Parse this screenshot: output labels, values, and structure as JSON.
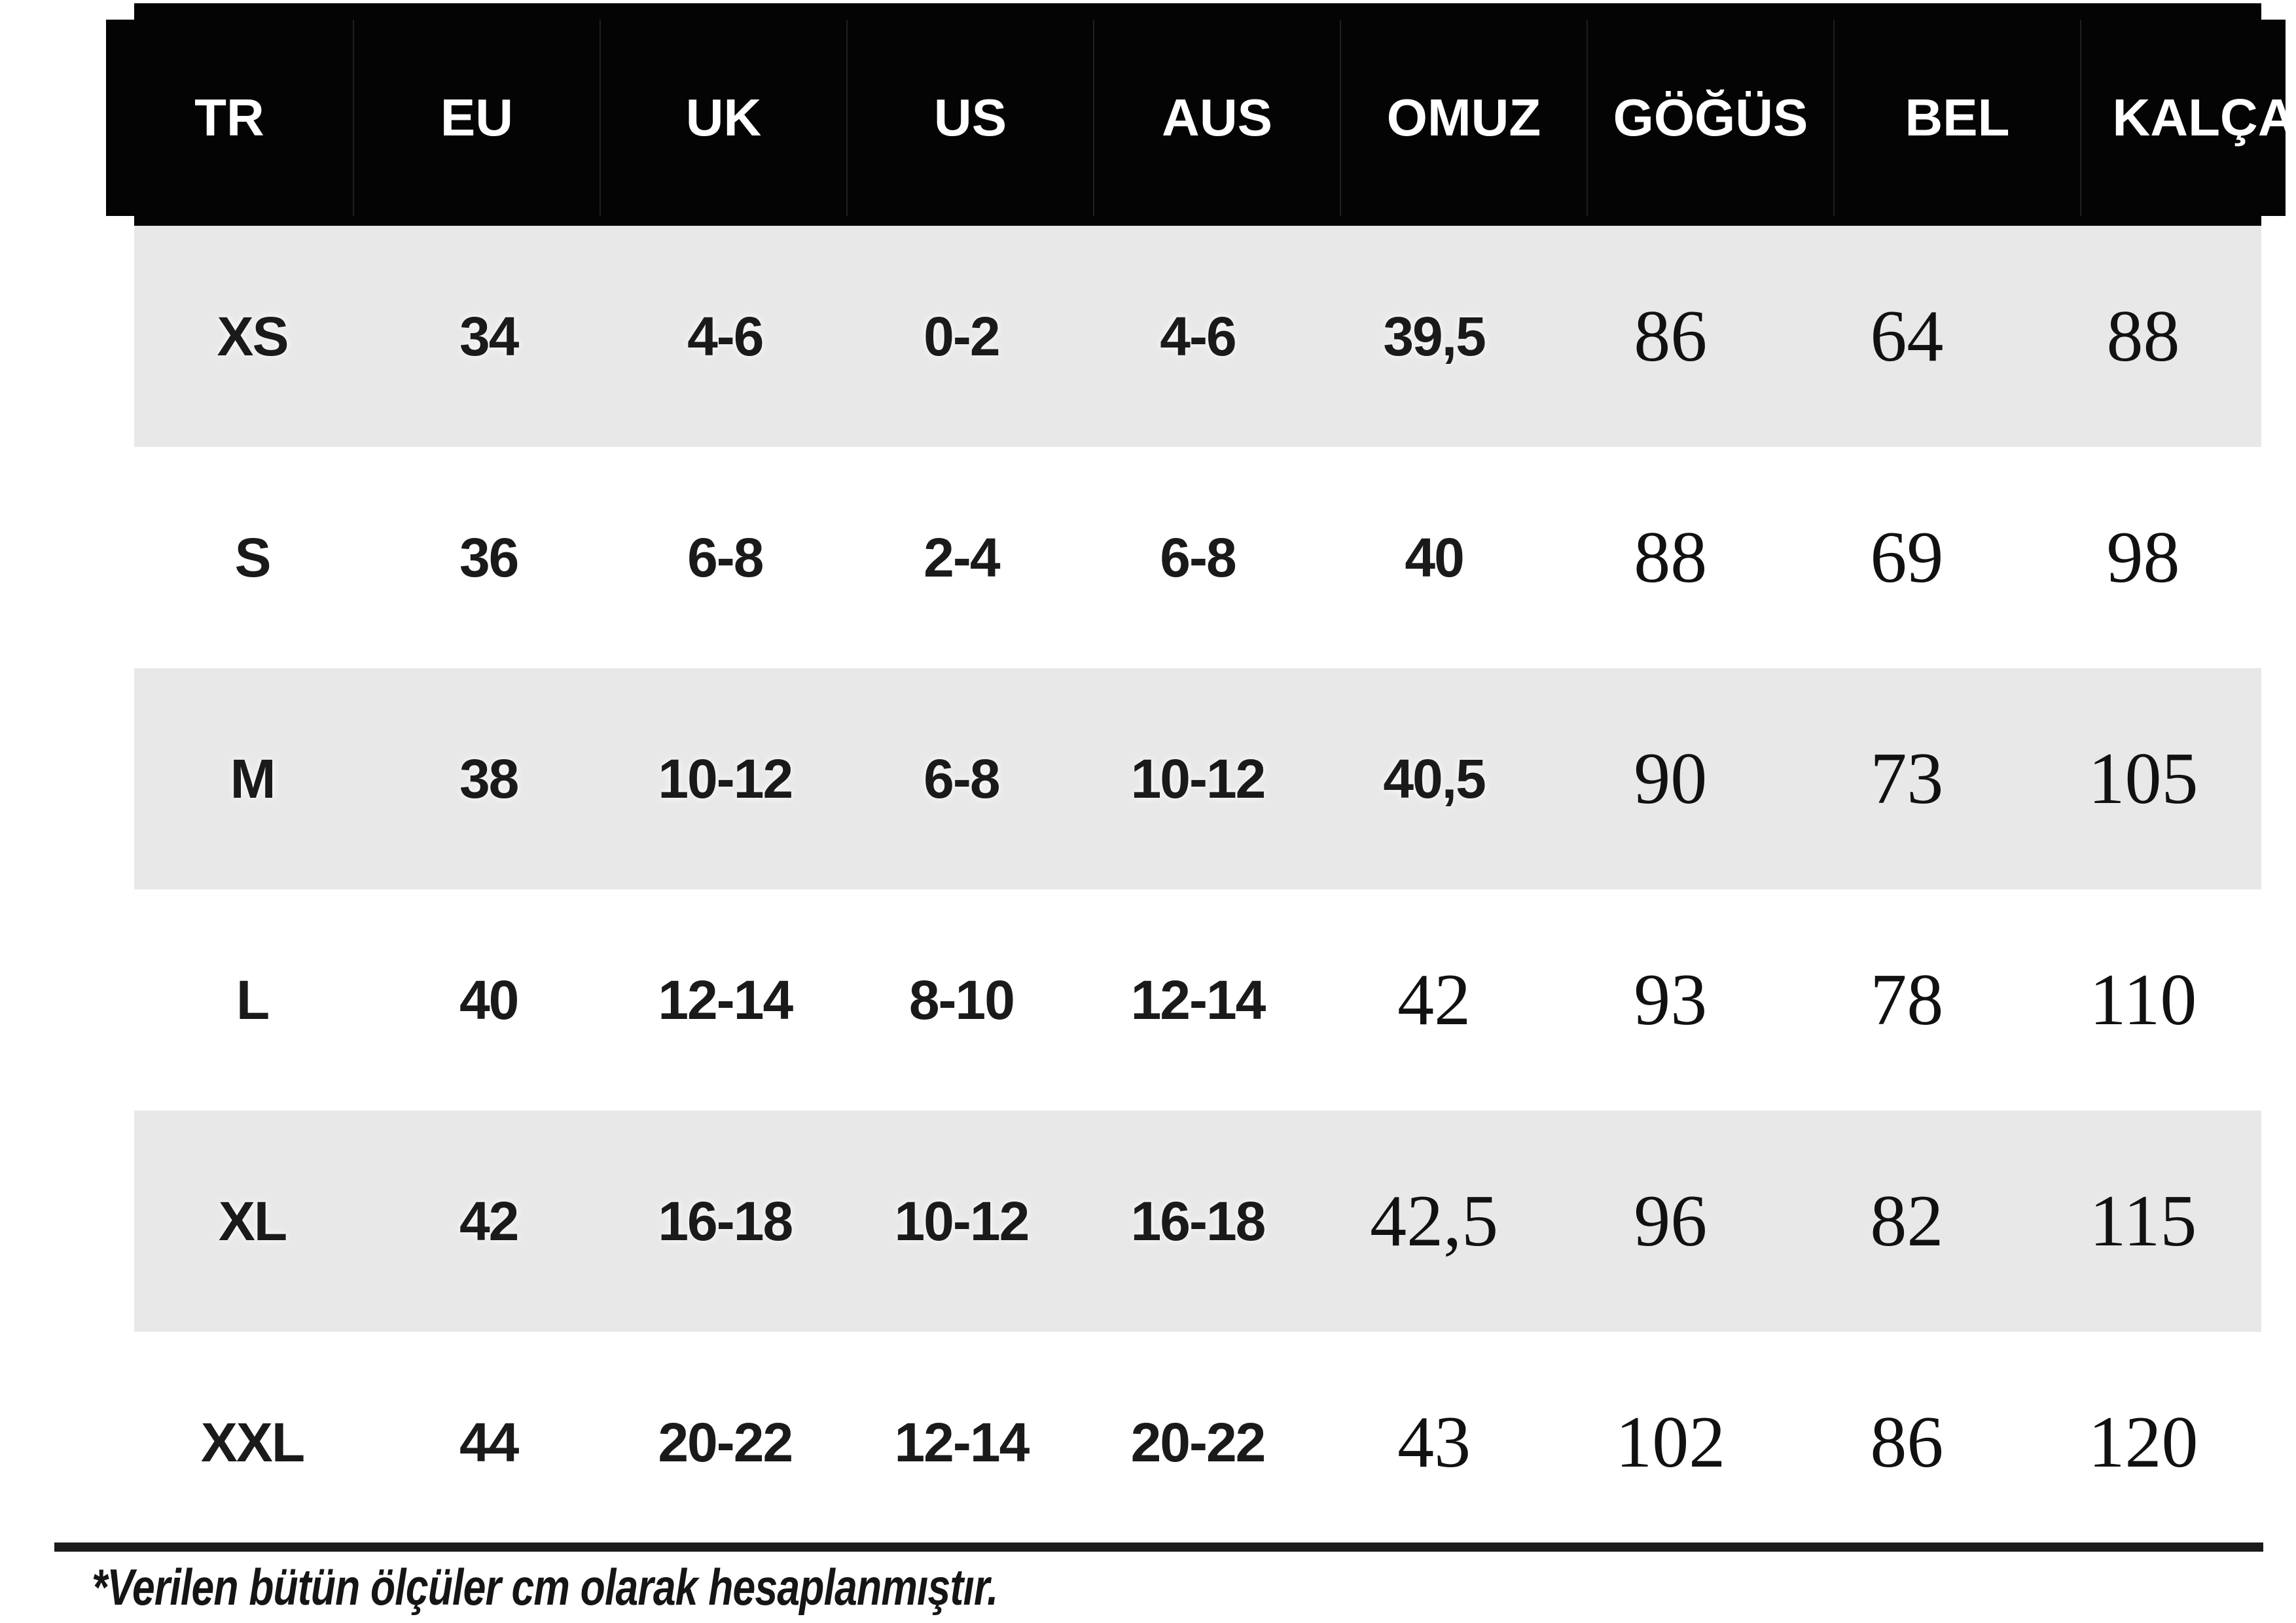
{
  "table": {
    "headers": [
      "TR",
      "EU",
      "UK",
      "US",
      "AUS",
      "OMUZ",
      "GÖĞÜS",
      "BEL",
      "KALÇA"
    ],
    "rows": [
      {
        "cells": [
          "XS",
          "34",
          "4-6",
          "0-2",
          "4-6",
          "39,5",
          "86",
          "64",
          "88"
        ]
      },
      {
        "cells": [
          "S",
          "36",
          "6-8",
          "2-4",
          "6-8",
          "40",
          "88",
          "69",
          "98"
        ]
      },
      {
        "cells": [
          "M",
          "38",
          "10-12",
          "6-8",
          "10-12",
          "40,5",
          "90",
          "73",
          "105"
        ]
      },
      {
        "cells": [
          "L",
          "40",
          "12-14",
          "8-10",
          "12-14",
          "42",
          "93",
          "78",
          "110"
        ]
      },
      {
        "cells": [
          "XL",
          "42",
          "16-18",
          "10-12",
          "16-18",
          "42,5",
          "96",
          "82",
          "115"
        ]
      },
      {
        "cells": [
          "XXL",
          "44",
          "20-22",
          "12-14",
          "20-22",
          "43",
          "102",
          "86",
          "120"
        ]
      }
    ]
  },
  "footer": {
    "note": "*Verilen bütün ölçüler cm olarak hesaplanmıştır."
  },
  "colors": {
    "header_bg": "#040404",
    "header_text": "#ffffff",
    "shaded_row_bg": "#e8e8e8",
    "body_text": "#151515",
    "rule": "#1b1b1b"
  }
}
